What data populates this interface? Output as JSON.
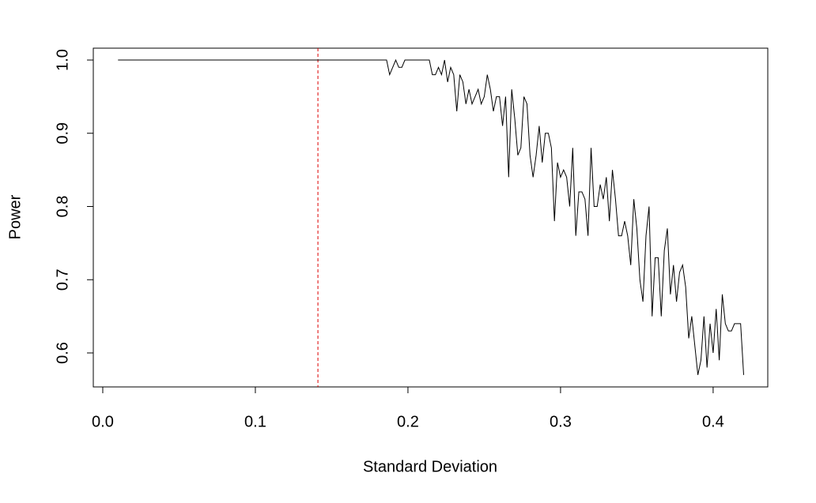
{
  "chart_data": {
    "type": "line",
    "xlabel": "Standard Deviation",
    "ylabel": "Power",
    "x": [
      0.01,
      0.186,
      0.188,
      0.19,
      0.192,
      0.194,
      0.196,
      0.198,
      0.2,
      0.202,
      0.204,
      0.206,
      0.208,
      0.21,
      0.212,
      0.214,
      0.216,
      0.218,
      0.22,
      0.222,
      0.224,
      0.226,
      0.228,
      0.23,
      0.232,
      0.234,
      0.236,
      0.238,
      0.24,
      0.242,
      0.244,
      0.246,
      0.248,
      0.25,
      0.252,
      0.254,
      0.256,
      0.258,
      0.26,
      0.262,
      0.264,
      0.266,
      0.268,
      0.27,
      0.272,
      0.274,
      0.276,
      0.278,
      0.28,
      0.282,
      0.284,
      0.286,
      0.288,
      0.29,
      0.292,
      0.294,
      0.296,
      0.298,
      0.3,
      0.302,
      0.304,
      0.306,
      0.308,
      0.31,
      0.312,
      0.314,
      0.316,
      0.318,
      0.32,
      0.322,
      0.324,
      0.326,
      0.328,
      0.33,
      0.332,
      0.334,
      0.336,
      0.338,
      0.34,
      0.342,
      0.344,
      0.346,
      0.348,
      0.35,
      0.352,
      0.354,
      0.356,
      0.358,
      0.36,
      0.362,
      0.364,
      0.366,
      0.368,
      0.37,
      0.372,
      0.374,
      0.376,
      0.378,
      0.38,
      0.382,
      0.384,
      0.386,
      0.388,
      0.39,
      0.392,
      0.394,
      0.396,
      0.398,
      0.4,
      0.402,
      0.404,
      0.406,
      0.408,
      0.41,
      0.412,
      0.414,
      0.416,
      0.418,
      0.42
    ],
    "values": [
      1,
      1,
      0.98,
      0.99,
      1,
      0.99,
      0.99,
      1,
      1,
      1,
      1,
      1,
      1,
      1,
      1,
      1,
      0.98,
      0.98,
      0.99,
      0.98,
      1,
      0.97,
      0.99,
      0.98,
      0.93,
      0.98,
      0.97,
      0.94,
      0.96,
      0.94,
      0.95,
      0.96,
      0.94,
      0.95,
      0.98,
      0.96,
      0.93,
      0.95,
      0.95,
      0.91,
      0.95,
      0.84,
      0.96,
      0.92,
      0.87,
      0.88,
      0.95,
      0.94,
      0.87,
      0.84,
      0.87,
      0.91,
      0.86,
      0.9,
      0.9,
      0.88,
      0.78,
      0.86,
      0.84,
      0.85,
      0.84,
      0.8,
      0.88,
      0.76,
      0.82,
      0.82,
      0.81,
      0.76,
      0.88,
      0.8,
      0.8,
      0.83,
      0.81,
      0.84,
      0.78,
      0.85,
      0.81,
      0.76,
      0.76,
      0.78,
      0.76,
      0.72,
      0.81,
      0.77,
      0.7,
      0.67,
      0.76,
      0.8,
      0.65,
      0.73,
      0.73,
      0.65,
      0.74,
      0.77,
      0.68,
      0.72,
      0.67,
      0.71,
      0.72,
      0.69,
      0.62,
      0.65,
      0.61,
      0.57,
      0.59,
      0.65,
      0.58,
      0.64,
      0.6,
      0.66,
      0.59,
      0.68,
      0.64,
      0.63,
      0.63,
      0.64,
      0.64,
      0.64,
      0.57
    ],
    "color": "#000000",
    "vline": 0.141,
    "vline_color": "#dd0000",
    "xlim": [
      -0.0062,
      0.4358
    ],
    "ylim": [
      0.5536,
      1.0162
    ],
    "xticks": [
      {
        "value": 0,
        "label": "0.0"
      },
      0.1,
      0.2,
      0.3,
      0.4
    ],
    "yticks": [
      0.6,
      0.7,
      0.8,
      0.9,
      {
        "value": 1,
        "label": "1.0"
      }
    ]
  }
}
